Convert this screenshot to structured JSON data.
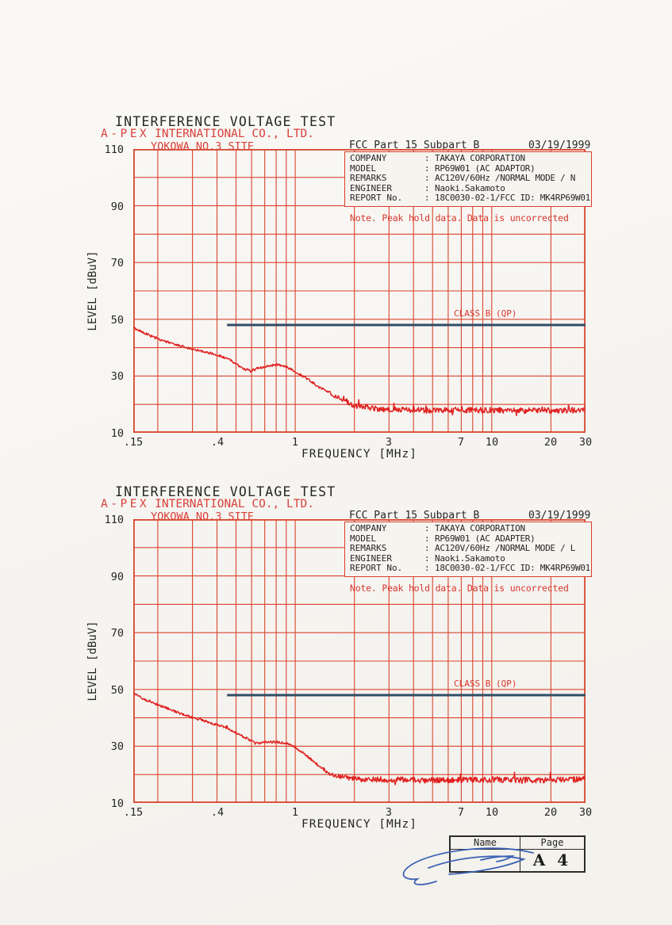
{
  "colors": {
    "paper": "#f7f5f1",
    "grid_red": "#d9452e",
    "trace_red": "#e02222",
    "header_red": "#d8403a",
    "limit_blue": "#2e4d66",
    "ink_black": "#262626",
    "signature_blue": "#3d63b5"
  },
  "charts": [
    {
      "title": "INTERFERENCE VOLTAGE TEST",
      "company_brand": "A-PEX",
      "company_rest": "INTERNATIONAL CO., LTD.",
      "site": "YOKOWA NO.3 SITE",
      "standard": "FCC Part 15 Subpart B",
      "date": "03/19/1999",
      "info_sep": ":",
      "info_rows": [
        {
          "label": "COMPANY",
          "value": "TAKAYA CORPORATION"
        },
        {
          "label": "MODEL",
          "value": "RP69W01 (AC ADAPTOR)"
        },
        {
          "label": "REMARKS",
          "value": "AC120V/60Hz /NORMAL MODE / N"
        },
        {
          "label": "ENGINEER",
          "value": "Naoki.Sakamoto"
        },
        {
          "label": "REPORT No.",
          "value": "18C0030-02-1/FCC ID: MK4RP69W01"
        }
      ],
      "note": "Note.  Peak hold data. Data is uncorrected",
      "limit_label": "CLASS B (QP)",
      "ylabel": "LEVEL [dBuV]",
      "xlabel": "FREQUENCY  [MHz]"
    },
    {
      "title": "INTERFERENCE VOLTAGE TEST",
      "company_brand": "A-PEX",
      "company_rest": "INTERNATIONAL CO., LTD.",
      "site": "YOKOWA NO.3 SITE",
      "standard": "FCC Part 15 Subpart B",
      "date": "03/19/1999",
      "info_sep": ":",
      "info_rows": [
        {
          "label": "COMPANY",
          "value": "TAKAYA CORPORATION"
        },
        {
          "label": "MODEL",
          "value": "RP69W01 (AC ADAPTER)"
        },
        {
          "label": "REMARKS",
          "value": "AC120V/60Hz /NORMAL MODE / L"
        },
        {
          "label": "ENGINEER",
          "value": "Naoki.Sakamoto"
        },
        {
          "label": "REPORT No.",
          "value": "18C0030-02-1/FCC ID: MK4RP69W01"
        }
      ],
      "note": "Note.  Peak hold data. Data is uncorrected",
      "limit_label": "CLASS B (QP)",
      "ylabel": "LEVEL [dBuV]",
      "xlabel": "FREQUENCY  [MHz]"
    }
  ],
  "footer": {
    "name_label": "Name",
    "page_label": "Page",
    "page_value": "A 4"
  },
  "chart_data": [
    {
      "type": "line",
      "title": "INTERFERENCE VOLTAGE TEST (YOKOWA NO.3 SITE)",
      "xlabel": "FREQUENCY [MHz]",
      "ylabel": "LEVEL [dBuV]",
      "x_scale": "log",
      "xlim": [
        0.15,
        30
      ],
      "ylim": [
        10,
        110
      ],
      "grid": true,
      "grid_x_values": [
        0.15,
        0.2,
        0.3,
        0.4,
        0.5,
        0.6,
        0.7,
        0.8,
        0.9,
        1,
        2,
        3,
        4,
        5,
        6,
        7,
        8,
        9,
        10,
        20,
        30
      ],
      "grid_y_step": 10,
      "x_ticks": [
        {
          "value": 0.15,
          "label": ".15"
        },
        {
          "value": 0.4,
          "label": ".4"
        },
        {
          "value": 1,
          "label": "1"
        },
        {
          "value": 3,
          "label": "3"
        },
        {
          "value": 7,
          "label": "7"
        },
        {
          "value": 10,
          "label": "10"
        },
        {
          "value": 20,
          "label": "20"
        },
        {
          "value": 30,
          "label": "30"
        }
      ],
      "y_ticks": [
        {
          "value": 110,
          "label": "110"
        },
        {
          "value": 90,
          "label": "90"
        },
        {
          "value": 70,
          "label": "70"
        },
        {
          "value": 50,
          "label": "50"
        },
        {
          "value": 30,
          "label": "30"
        },
        {
          "value": 10,
          "label": "10"
        }
      ],
      "series": [
        {
          "name": "Peak hold data (NORMAL MODE / N)",
          "color": "#e02222",
          "seed": 19990319,
          "noise": {
            "base": 0.4,
            "floor": 1.0,
            "ramp_start": 1.2,
            "ramp_end": 2.2
          },
          "points": [
            [
              0.15,
              47
            ],
            [
              0.17,
              45.2
            ],
            [
              0.2,
              43
            ],
            [
              0.25,
              41
            ],
            [
              0.3,
              39.5
            ],
            [
              0.35,
              38.5
            ],
            [
              0.4,
              37.4
            ],
            [
              0.45,
              36.3
            ],
            [
              0.5,
              34.3
            ],
            [
              0.55,
              32.4
            ],
            [
              0.6,
              32.0
            ],
            [
              0.65,
              32.8
            ],
            [
              0.7,
              33.3
            ],
            [
              0.8,
              34.0
            ],
            [
              0.9,
              33.4
            ],
            [
              1.0,
              31.5
            ],
            [
              1.15,
              29.0
            ],
            [
              1.3,
              26.5
            ],
            [
              1.5,
              24.0
            ],
            [
              1.7,
              21.8
            ],
            [
              2.0,
              19.6
            ],
            [
              2.5,
              18.6
            ],
            [
              3.0,
              18.2
            ],
            [
              5.0,
              18.0
            ],
            [
              10.0,
              18.0
            ],
            [
              20.0,
              17.8
            ],
            [
              30.0,
              18.0
            ]
          ]
        }
      ],
      "limit": {
        "label": "CLASS B (QP)",
        "value_dbuv": 48,
        "from_mhz": 0.45,
        "to_mhz": 30,
        "color": "#2e4d66"
      }
    },
    {
      "type": "line",
      "title": "INTERFERENCE VOLTAGE TEST (YOKOWA NO.3 SITE)",
      "xlabel": "FREQUENCY [MHz]",
      "ylabel": "LEVEL [dBuV]",
      "x_scale": "log",
      "xlim": [
        0.15,
        30
      ],
      "ylim": [
        10,
        110
      ],
      "grid": true,
      "grid_x_values": [
        0.15,
        0.2,
        0.3,
        0.4,
        0.5,
        0.6,
        0.7,
        0.8,
        0.9,
        1,
        2,
        3,
        4,
        5,
        6,
        7,
        8,
        9,
        10,
        20,
        30
      ],
      "grid_y_step": 10,
      "x_ticks": [
        {
          "value": 0.15,
          "label": ".15"
        },
        {
          "value": 0.4,
          "label": ".4"
        },
        {
          "value": 1,
          "label": "1"
        },
        {
          "value": 3,
          "label": "3"
        },
        {
          "value": 7,
          "label": "7"
        },
        {
          "value": 10,
          "label": "10"
        },
        {
          "value": 20,
          "label": "20"
        },
        {
          "value": 30,
          "label": "30"
        }
      ],
      "y_ticks": [
        {
          "value": 110,
          "label": "110"
        },
        {
          "value": 90,
          "label": "90"
        },
        {
          "value": 70,
          "label": "70"
        },
        {
          "value": 50,
          "label": "50"
        },
        {
          "value": 30,
          "label": "30"
        },
        {
          "value": 10,
          "label": "10"
        }
      ],
      "series": [
        {
          "name": "Peak hold data (NORMAL MODE / L)",
          "color": "#e02222",
          "seed": 30919991,
          "noise": {
            "base": 0.4,
            "floor": 1.0,
            "ramp_start": 1.2,
            "ramp_end": 2.2
          },
          "points": [
            [
              0.15,
              48.5
            ],
            [
              0.17,
              46.6
            ],
            [
              0.2,
              44.6
            ],
            [
              0.25,
              42.0
            ],
            [
              0.3,
              40.0
            ],
            [
              0.35,
              38.8
            ],
            [
              0.4,
              37.5
            ],
            [
              0.45,
              36.4
            ],
            [
              0.5,
              34.8
            ],
            [
              0.55,
              33.2
            ],
            [
              0.6,
              31.8
            ],
            [
              0.63,
              30.9
            ],
            [
              0.7,
              31.4
            ],
            [
              0.8,
              31.5
            ],
            [
              0.9,
              31.0
            ],
            [
              1.0,
              29.6
            ],
            [
              1.15,
              26.5
            ],
            [
              1.3,
              23.5
            ],
            [
              1.5,
              20.2
            ],
            [
              1.8,
              18.8
            ],
            [
              2.0,
              18.5
            ],
            [
              3.0,
              18.2
            ],
            [
              5.0,
              18.0
            ],
            [
              10.0,
              18.2
            ],
            [
              20.0,
              18.0
            ],
            [
              30.0,
              18.4
            ]
          ]
        }
      ],
      "limit": {
        "label": "CLASS B (QP)",
        "value_dbuv": 48,
        "from_mhz": 0.45,
        "to_mhz": 30,
        "color": "#2e4d66"
      }
    }
  ]
}
